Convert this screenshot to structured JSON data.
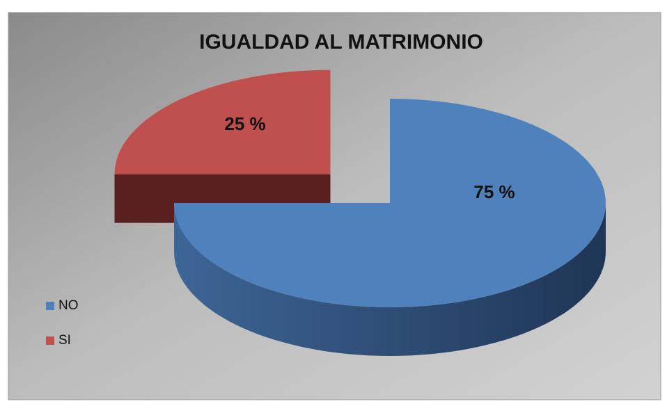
{
  "chart_data": {
    "type": "pie",
    "title": "IGUALDAD AL MATRIMONIO",
    "categories": [
      "NO",
      "SI"
    ],
    "values": [
      75,
      25
    ],
    "value_labels": [
      "75 %",
      "25 %"
    ],
    "colors": [
      "#4f81bd",
      "#c0504d"
    ],
    "legend": "left"
  }
}
